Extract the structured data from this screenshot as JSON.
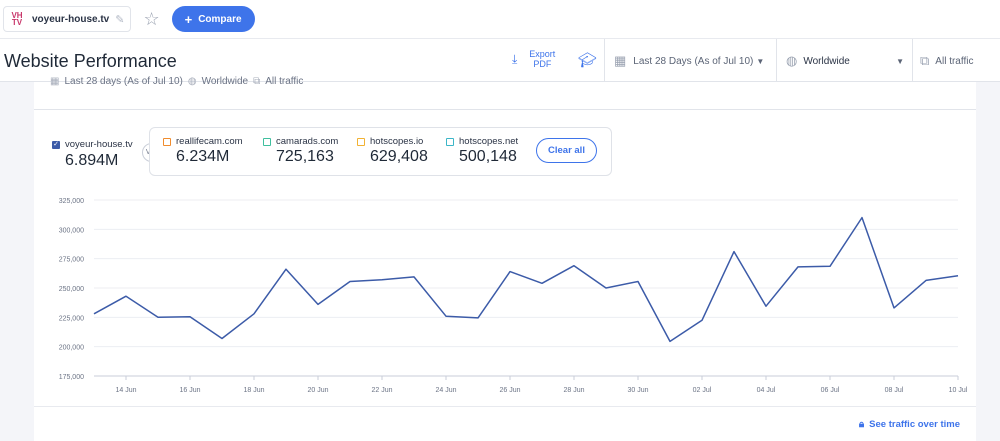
{
  "topbar": {
    "favicon_text": "VH TV",
    "site_name": "voyeur-house.tv",
    "compare_label": "Compare",
    "compare_plus": "+",
    "icons": {
      "edit": "pencil-icon",
      "favorite": "star-icon"
    }
  },
  "header": {
    "title": "Website Performance",
    "export_label": "Export PDF",
    "date_range": "Last 28 Days (As of Jul 10)",
    "country": "Worldwide",
    "traffic": "All traffic"
  },
  "subinfo": {
    "date": "Last 28 days (As of Jul 10)",
    "country": "Worldwide",
    "traffic": "All traffic"
  },
  "main_site": {
    "name": "voyeur-house.tv",
    "value": "6.894M",
    "color": "#3c5ba8"
  },
  "vs_label": "VS.",
  "competitors": [
    {
      "name": "reallifecam.com",
      "value": "6.234M",
      "color": "#f08c2e"
    },
    {
      "name": "camarads.com",
      "value": "725,163",
      "color": "#3fbf9e"
    },
    {
      "name": "hotscopes.io",
      "value": "629,408",
      "color": "#f2b233"
    },
    {
      "name": "hotscopes.net",
      "value": "500,148",
      "color": "#3cb6c8"
    }
  ],
  "clear_all": "Clear all",
  "see_traffic": "See traffic over time",
  "chart_data": {
    "type": "line",
    "ylim": [
      175000,
      325000
    ],
    "yticks": [
      "175,000",
      "200,000",
      "225,000",
      "250,000",
      "275,000",
      "300,000",
      "325,000"
    ],
    "ytick_values": [
      175000,
      200000,
      225000,
      250000,
      275000,
      300000,
      325000
    ],
    "xticks": [
      "14 Jun",
      "16 Jun",
      "18 Jun",
      "20 Jun",
      "22 Jun",
      "24 Jun",
      "26 Jun",
      "28 Jun",
      "30 Jun",
      "02 Jul",
      "04 Jul",
      "06 Jul",
      "08 Jul",
      "10 Jul"
    ],
    "grid": true,
    "series": [
      {
        "color": "#3c5ba8",
        "x": [
          "13 Jun",
          "14 Jun",
          "15 Jun",
          "16 Jun",
          "17 Jun",
          "18 Jun",
          "19 Jun",
          "20 Jun",
          "21 Jun",
          "22 Jun",
          "23 Jun",
          "24 Jun",
          "25 Jun",
          "26 Jun",
          "27 Jun",
          "28 Jun",
          "29 Jun",
          "30 Jun",
          "01 Jul",
          "02 Jul",
          "03 Jul",
          "04 Jul",
          "05 Jul",
          "06 Jul",
          "07 Jul",
          "08 Jul",
          "09 Jul",
          "10 Jul"
        ],
        "values": [
          228000,
          243000,
          225000,
          225500,
          207000,
          228000,
          266000,
          236000,
          255500,
          257000,
          259500,
          226000,
          224500,
          264000,
          254000,
          269000,
          250000,
          255500,
          204500,
          222500,
          281000,
          234500,
          268000,
          268500,
          310000,
          233000,
          256500,
          260500
        ]
      }
    ]
  }
}
